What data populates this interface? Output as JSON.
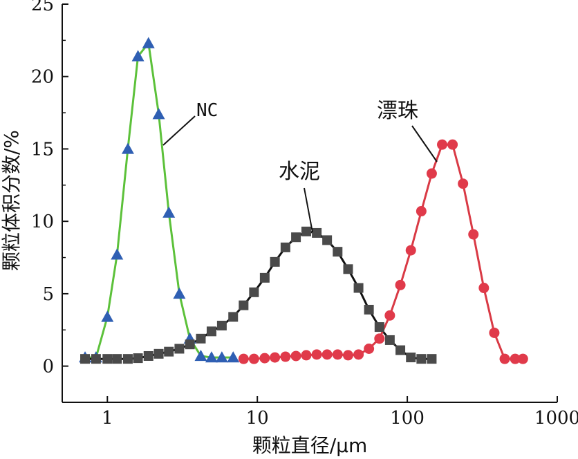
{
  "chart_data": {
    "type": "line",
    "xlabel": "颗粒直径/μm",
    "ylabel": "颗粒体积分数/%",
    "x_scale": "log",
    "xlim": [
      0.5,
      1000
    ],
    "ylim": [
      -2.5,
      25
    ],
    "x_ticks": [
      1,
      10,
      100,
      1000
    ],
    "x_tick_labels": [
      "1",
      "10",
      "100",
      "1000"
    ],
    "y_ticks": [
      0,
      5,
      10,
      15,
      20,
      25
    ],
    "y_tick_labels": [
      "0",
      "5",
      "10",
      "15",
      "20",
      "25"
    ],
    "grid": false,
    "series": [
      {
        "name": "NC",
        "color": "#2f5fb3",
        "line_color": "#5cc13a",
        "marker": "triangle",
        "x": [
          0.71,
          0.84,
          1.0,
          1.16,
          1.37,
          1.6,
          1.88,
          2.2,
          2.57,
          3.02,
          3.55,
          4.2,
          4.95,
          5.8,
          6.9
        ],
        "y": [
          0.6,
          0.6,
          3.4,
          7.7,
          15.0,
          21.4,
          22.3,
          17.4,
          10.6,
          5.0,
          1.9,
          0.7,
          0.6,
          0.6,
          0.6
        ]
      },
      {
        "name": "水泥",
        "color": "#4a4a4a",
        "line_color": "#111111",
        "marker": "square",
        "x": [
          0.71,
          0.84,
          1.0,
          1.16,
          1.37,
          1.6,
          1.88,
          2.2,
          2.57,
          3.02,
          3.55,
          4.2,
          4.95,
          5.8,
          6.9,
          8.1,
          9.5,
          11.2,
          13.1,
          15.4,
          18.1,
          21.2,
          24.9,
          29.2,
          34.3,
          40.3,
          47.3,
          55.5,
          65.2,
          76.5,
          89.9,
          105.6,
          124.0,
          145.5
        ],
        "y": [
          0.5,
          0.5,
          0.5,
          0.5,
          0.5,
          0.55,
          0.7,
          0.85,
          1.0,
          1.2,
          1.5,
          1.9,
          2.4,
          2.8,
          3.4,
          4.2,
          5.1,
          6.1,
          7.2,
          8.2,
          8.9,
          9.3,
          9.2,
          8.7,
          7.9,
          6.7,
          5.4,
          3.9,
          2.7,
          1.8,
          1.1,
          0.6,
          0.5,
          0.5
        ]
      },
      {
        "name": "漂珠",
        "color": "#e03a4a",
        "line_color": "#d93a45",
        "marker": "circle",
        "x": [
          8.1,
          9.5,
          11.2,
          13.1,
          15.4,
          18.1,
          21.2,
          24.9,
          29.2,
          34.3,
          40.3,
          47.3,
          55.5,
          65.2,
          76.5,
          89.9,
          105.6,
          124.0,
          145.5,
          170.8,
          200.4,
          235.2,
          276.0,
          324.0,
          380.3,
          446.4,
          523.9,
          590.0
        ],
        "y": [
          0.5,
          0.5,
          0.55,
          0.6,
          0.65,
          0.7,
          0.75,
          0.8,
          0.8,
          0.8,
          0.75,
          0.8,
          1.2,
          1.9,
          3.5,
          5.6,
          8.0,
          10.7,
          13.3,
          15.3,
          15.3,
          12.6,
          9.1,
          5.4,
          2.3,
          0.5,
          0.5,
          0.5
        ]
      }
    ],
    "annotations": [
      {
        "text": "NC",
        "series": "NC"
      },
      {
        "text": "水泥",
        "series": "水泥"
      },
      {
        "text": "漂珠",
        "series": "漂珠"
      }
    ]
  }
}
